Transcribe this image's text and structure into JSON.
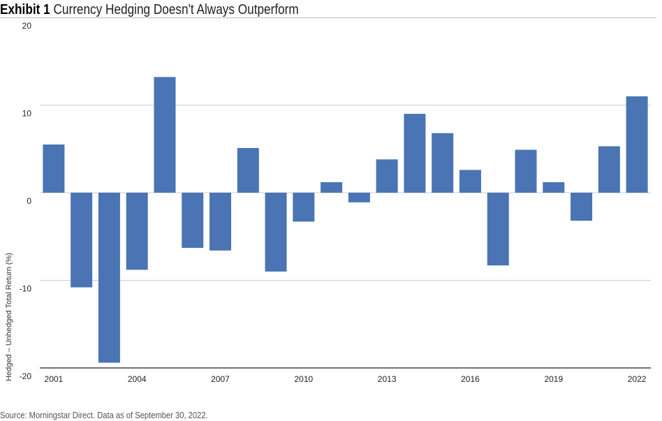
{
  "header": {
    "exhibit": "Exhibit 1",
    "title": "Currency Hedging Doesn't Always Outperform"
  },
  "footer": {
    "source": "Source: Morningstar Direct. Data as of September 30, 2022."
  },
  "chart_data": {
    "type": "bar",
    "title": "Currency Hedging Doesn't Always Outperform",
    "ylabel": "Hedged – Unhedged Total Return (%)",
    "xlabel": "",
    "ylim": [
      -20,
      20
    ],
    "yticks": [
      20,
      10,
      0,
      -10,
      -20
    ],
    "grid": true,
    "bar_color": "#4a74b4",
    "categories": [
      "2001",
      "2002",
      "2003",
      "2004",
      "2005",
      "2006",
      "2007",
      "2008",
      "2009",
      "2010",
      "2011",
      "2012",
      "2013",
      "2014",
      "2015",
      "2016",
      "2017",
      "2018",
      "2019",
      "2020",
      "2021",
      "2022"
    ],
    "xtick_labels": [
      "2001",
      "2004",
      "2007",
      "2010",
      "2013",
      "2016",
      "2019",
      "2022"
    ],
    "values": [
      5.5,
      -10.8,
      -19.4,
      -8.8,
      13.2,
      -6.3,
      -6.6,
      5.1,
      -9.0,
      -3.3,
      1.2,
      -1.1,
      3.8,
      9.0,
      6.8,
      2.6,
      -8.3,
      4.9,
      1.2,
      -3.2,
      5.3,
      11.0
    ]
  }
}
